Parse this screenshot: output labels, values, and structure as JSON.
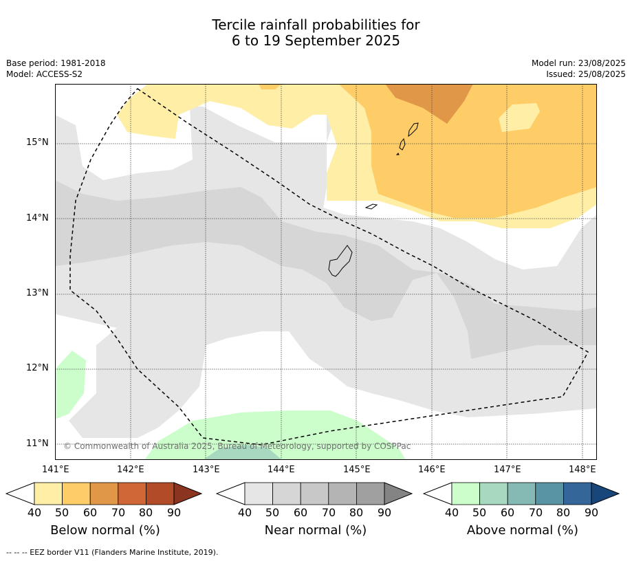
{
  "title": {
    "line1": "Tercile rainfall probabilities for",
    "line2": "6 to 19 September 2025"
  },
  "meta": {
    "base_period": "Base period: 1981-2018",
    "model": "Model: ACCESS-S2",
    "model_run": "Model run: 23/08/2025",
    "issued": "Issued: 25/08/2025"
  },
  "map": {
    "lon_labels": [
      "141°E",
      "142°E",
      "143°E",
      "144°E",
      "145°E",
      "146°E",
      "147°E",
      "148°E"
    ],
    "lat_labels": [
      "15°N",
      "14°N",
      "13°N",
      "12°N",
      "11°N"
    ],
    "copyright": "© Commonwealth of Australia 2025, Bureau of Meteorology, supported by COSPPac",
    "colors": {
      "near40": "#e6e6e6",
      "near50": "#d6d6d6",
      "below40": "#ffeea6",
      "below50": "#fecd68",
      "below60": "#e09747",
      "above40": "#ccfecc",
      "above50": "#a6d9c0"
    }
  },
  "colorbars": [
    {
      "title": "Below normal (%)",
      "ticks": [
        "40",
        "50",
        "60",
        "70",
        "80",
        "90"
      ],
      "colors": [
        "#ffeea6",
        "#fecd68",
        "#e09747",
        "#cf6737",
        "#b14b28",
        "#8b3520"
      ]
    },
    {
      "title": "Near normal (%)",
      "ticks": [
        "40",
        "50",
        "60",
        "70",
        "80",
        "90"
      ],
      "colors": [
        "#e6e6e6",
        "#d6d6d6",
        "#c8c8c8",
        "#b4b4b4",
        "#a0a0a0",
        "#848484"
      ]
    },
    {
      "title": "Above normal (%)",
      "ticks": [
        "40",
        "50",
        "60",
        "70",
        "80",
        "90"
      ],
      "colors": [
        "#ccfecc",
        "#a6d9c0",
        "#84b9b4",
        "#5894a3",
        "#356699",
        "#18457a"
      ]
    }
  ],
  "footer": "--  --  -- EEZ border V11 (Flanders Marine Institute, 2019)."
}
